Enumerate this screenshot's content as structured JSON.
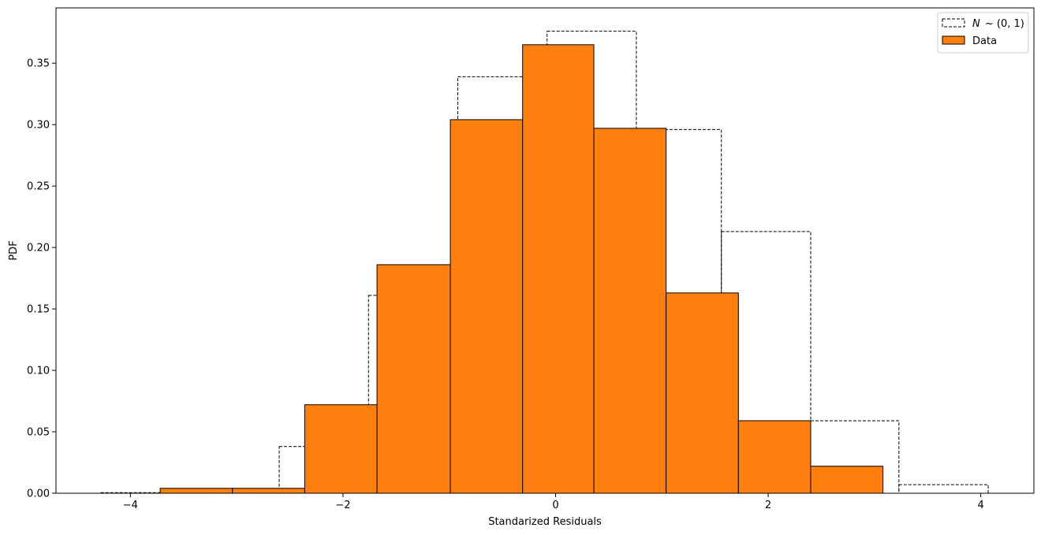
{
  "chart_data": {
    "type": "bar",
    "title": "",
    "xlabel": "Standarized Residuals",
    "ylabel": "PDF",
    "xlim": [
      -4.7,
      4.5
    ],
    "ylim": [
      0,
      0.395
    ],
    "xticks": [
      -4,
      -2,
      0,
      2,
      4
    ],
    "xtick_labels": [
      "−4",
      "−2",
      "0",
      "2",
      "4"
    ],
    "yticks": [
      0.0,
      0.05,
      0.1,
      0.15,
      0.2,
      0.25,
      0.3,
      0.35
    ],
    "ytick_labels": [
      "0.00",
      "0.05",
      "0.10",
      "0.15",
      "0.20",
      "0.25",
      "0.30",
      "0.35"
    ],
    "grid": false,
    "legend_position": "top-right",
    "series": [
      {
        "name": "N ~ (0, 1)",
        "style": "step-dashed",
        "color": "#000000",
        "bin_edges": [
          -4.28,
          -3.44,
          -2.6,
          -1.76,
          -0.92,
          -0.08,
          0.76,
          1.56,
          2.4,
          3.23,
          4.07
        ],
        "values": [
          0.0005,
          0.0005,
          0.038,
          0.161,
          0.339,
          0.376,
          0.296,
          0.213,
          0.059,
          0.007,
          0.0005
        ]
      },
      {
        "name": "Data",
        "style": "filled-bar",
        "color": "#ff7f0e",
        "edge_color": "#000000",
        "bin_edges": [
          -3.72,
          -3.04,
          -2.36,
          -1.68,
          -0.99,
          -0.31,
          0.36,
          1.04,
          1.72,
          2.4,
          3.08
        ],
        "values": [
          0.004,
          0.004,
          0.072,
          0.186,
          0.304,
          0.365,
          0.297,
          0.163,
          0.059,
          0.022
        ]
      }
    ]
  },
  "legend": {
    "normal_label_prefix": "N",
    "normal_label_rest": "~ (0, 1)",
    "data_label": "Data"
  },
  "colors": {
    "data_fill": "#ff7f0e",
    "edge": "#000000",
    "background": "#ffffff"
  }
}
